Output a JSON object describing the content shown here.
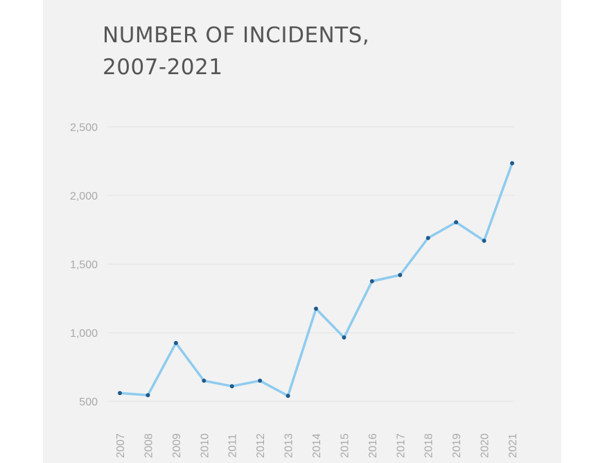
{
  "chart_data": {
    "type": "line",
    "title_lines": [
      "NUMBER OF INCIDENTS,",
      "2007-2021"
    ],
    "xlabel": "",
    "ylabel": "",
    "categories": [
      "2007",
      "2008",
      "2009",
      "2010",
      "2011",
      "2012",
      "2013",
      "2014",
      "2015",
      "2016",
      "2017",
      "2018",
      "2019",
      "2020",
      "2021"
    ],
    "series": [
      {
        "values": [
          560,
          545,
          925,
          650,
          610,
          650,
          540,
          1175,
          965,
          1375,
          1420,
          1690,
          1805,
          1670,
          2235
        ]
      }
    ],
    "ylim": [
      500,
      2500
    ],
    "yticks": [
      500,
      1000,
      1500,
      2000,
      2500
    ],
    "ytick_labels": [
      "500",
      "1,000",
      "1,500",
      "2,000",
      "2,500"
    ],
    "grid": true,
    "legend": "none",
    "colors": {
      "line": "#8ecbef",
      "marker": "#1f5a8c",
      "grid": "#e3e3e3",
      "tick_text": "#a9a9a9",
      "title_text": "#555555",
      "panel_background": "#f2f2f2"
    }
  }
}
